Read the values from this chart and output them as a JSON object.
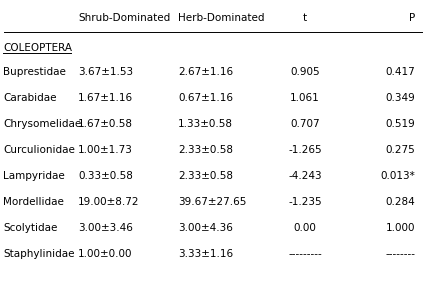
{
  "headers": [
    "Shrub-Dominated",
    "Herb-Dominated",
    "t",
    "P"
  ],
  "section": "COLEOPTERA",
  "rows": [
    [
      "Buprestidae",
      "3.67±1.53",
      "2.67±1.16",
      "0.905",
      "0.417"
    ],
    [
      "Carabidae",
      "1.67±1.16",
      "0.67±1.16",
      "1.061",
      "0.349"
    ],
    [
      "Chrysomelidae",
      "1.67±0.58",
      "1.33±0.58",
      "0.707",
      "0.519"
    ],
    [
      "Curculionidae",
      "1.00±1.73",
      "2.33±0.58",
      "-1.265",
      "0.275"
    ],
    [
      "Lampyridae",
      "0.33±0.58",
      "2.33±0.58",
      "-4.243",
      "0.013*"
    ],
    [
      "Mordellidae",
      "19.00±8.72",
      "39.67±27.65",
      "-1.235",
      "0.284"
    ],
    [
      "Scolytidae",
      "3.00±3.46",
      "3.00±4.36",
      "0.00",
      "1.000"
    ],
    [
      "Staphylinidae",
      "1.00±0.00",
      "3.33±1.16",
      "---------",
      "--------"
    ]
  ],
  "bg_color": "#ffffff",
  "font_size": 7.5,
  "font_family": "DejaVu Sans"
}
